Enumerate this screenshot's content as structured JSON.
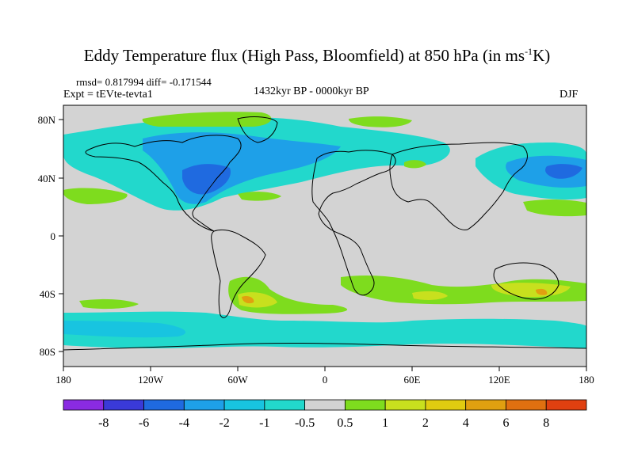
{
  "title": {
    "main": "Eddy Temperature flux (High Pass, Bloomfield) at 850 hPa (in ms",
    "superscript": "-1",
    "suffix": "K)"
  },
  "stats": {
    "rmsd_line": "rmsd= 0.817994 diff= -0.171544"
  },
  "experiment": "Expt = tEVte-tevta1",
  "period": "1432kyr BP - 0000kyr BP",
  "season": "DJF",
  "axes": {
    "lat_labels": [
      "80N",
      "40N",
      "0",
      "40S",
      "80S"
    ],
    "lon_labels": [
      "180",
      "120W",
      "60W",
      "0",
      "60E",
      "120E",
      "180"
    ]
  },
  "colorbar": {
    "colors": [
      "#8a2be2",
      "#3a3ad8",
      "#1f6ae0",
      "#1ea0e8",
      "#18c4e0",
      "#22d8cc",
      "#d3d3d3",
      "#7edc1e",
      "#c8e01e",
      "#e0cc10",
      "#e0a010",
      "#e07010",
      "#e04010"
    ],
    "labels": [
      "-8",
      "-6",
      "-4",
      "-2",
      "-1",
      "-0.5",
      "0.5",
      "1",
      "2",
      "4",
      "6",
      "8"
    ]
  },
  "palette": {
    "neutral": "#d3d3d3",
    "blue_light": "#22d8cc",
    "blue_mid": "#18c4e0",
    "blue": "#1ea0e8",
    "blue_dark": "#1f6ae0",
    "green": "#7edc1e",
    "yellow": "#c8e01e",
    "orange": "#e0a010",
    "coast": "#000000"
  }
}
